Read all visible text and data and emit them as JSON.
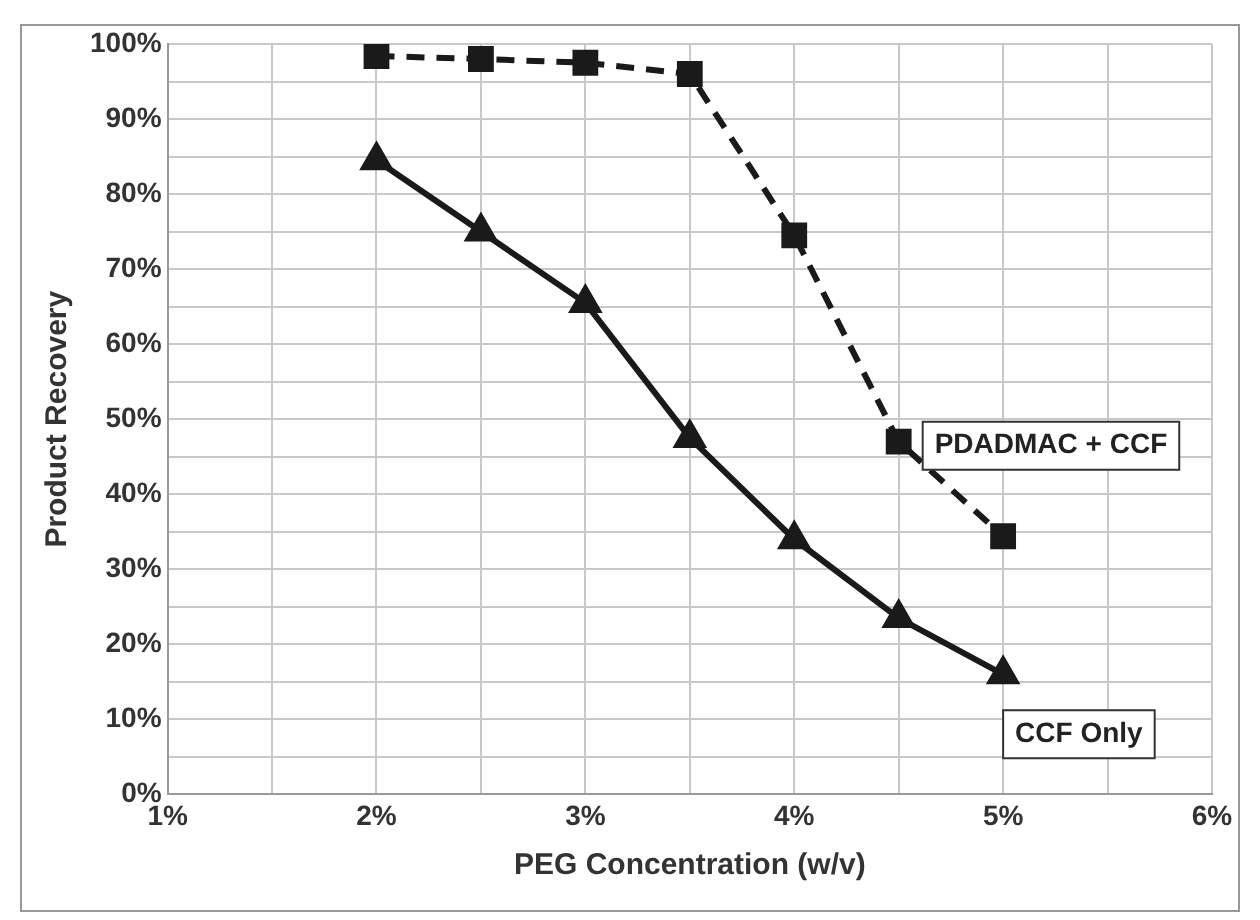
{
  "chart_data": {
    "type": "line",
    "xlabel": "PEG Concentration (w/v)",
    "ylabel": "Product Recovery",
    "x": [
      2,
      2.5,
      3,
      3.5,
      4,
      4.5,
      5
    ],
    "series": [
      {
        "name": "PDADMAC + CCF",
        "color": "#1a1a1a",
        "marker": "square",
        "line_style": "dashed",
        "values": [
          98.4,
          98,
          97.5,
          96,
          74.5,
          47,
          34.4
        ]
      },
      {
        "name": "CCF Only",
        "color": "#1a1a1a",
        "marker": "triangle",
        "line_style": "solid",
        "values": [
          84.5,
          75,
          65.5,
          47.5,
          34,
          23.5,
          16
        ]
      }
    ],
    "xlim": [
      1,
      6
    ],
    "xticks": [
      {
        "value": 1,
        "label": "1%"
      },
      {
        "value": 1.5,
        "label": null
      },
      {
        "value": 2,
        "label": "2%"
      },
      {
        "value": 2.5,
        "label": null
      },
      {
        "value": 3,
        "label": "3%"
      },
      {
        "value": 3.5,
        "label": null
      },
      {
        "value": 4,
        "label": "4%"
      },
      {
        "value": 4.5,
        "label": null
      },
      {
        "value": 5,
        "label": "5%"
      },
      {
        "value": 5.5,
        "label": null
      },
      {
        "value": 6,
        "label": "6%"
      }
    ],
    "ylim": [
      0,
      100
    ],
    "yticks": [
      {
        "value": 0,
        "label": "0%"
      },
      {
        "value": 5,
        "label": null
      },
      {
        "value": 10,
        "label": "10%"
      },
      {
        "value": 15,
        "label": null
      },
      {
        "value": 20,
        "label": "20%"
      },
      {
        "value": 25,
        "label": null
      },
      {
        "value": 30,
        "label": "30%"
      },
      {
        "value": 35,
        "label": null
      },
      {
        "value": 40,
        "label": "40%"
      },
      {
        "value": 45,
        "label": null
      },
      {
        "value": 50,
        "label": "50%"
      },
      {
        "value": 55,
        "label": null
      },
      {
        "value": 60,
        "label": "60%"
      },
      {
        "value": 65,
        "label": null
      },
      {
        "value": 70,
        "label": "70%"
      },
      {
        "value": 75,
        "label": null
      },
      {
        "value": 80,
        "label": "80%"
      },
      {
        "value": 85,
        "label": null
      },
      {
        "value": 90,
        "label": "90%"
      },
      {
        "value": 95,
        "label": null
      },
      {
        "value": 100,
        "label": "100%"
      }
    ],
    "grid": true,
    "legend": false
  }
}
